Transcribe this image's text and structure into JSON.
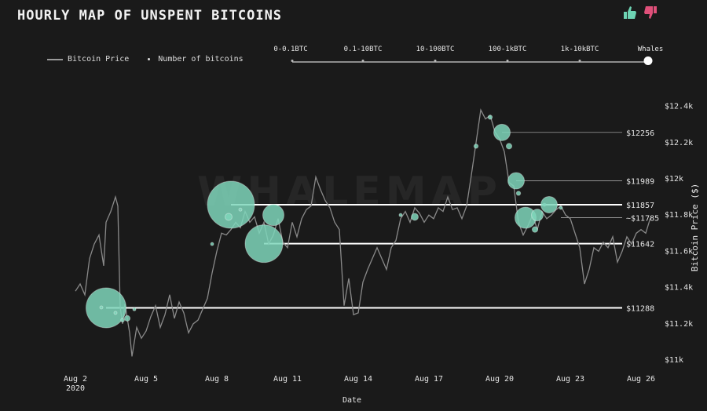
{
  "header": {
    "title": "HOURLY MAP OF UNSPENT BITCOINS",
    "thumbs_up_icon": "thumbs-up-icon",
    "thumbs_down_icon": "thumbs-down-icon",
    "thumbs_up_color": "#6dd3b3",
    "thumbs_down_color": "#e0507a"
  },
  "legend": {
    "price_label": "Bitcoin Price",
    "coins_label": "Number of bitcoins"
  },
  "slider": {
    "options": [
      "0-0.1BTC",
      "0.1-10BTC",
      "10-100BTC",
      "100-1kBTC",
      "1k-10kBTC",
      "Whales"
    ],
    "selected": "Whales"
  },
  "watermark": "WHALEMAP",
  "chart_data": {
    "type": "scatter",
    "title": "HOURLY MAP OF UNSPENT BITCOINS",
    "xlabel": "Date",
    "ylabel": "Bitcoin Price ($)",
    "x_ticks": [
      "Aug 2",
      "Aug 5",
      "Aug 8",
      "Aug 11",
      "Aug 14",
      "Aug 17",
      "Aug 20",
      "Aug 23",
      "Aug 26"
    ],
    "x_tick_sublabel": "2020",
    "y_ticks": [
      "$11k",
      "$11.2k",
      "$11.4k",
      "$11.6k",
      "$11.8k",
      "$12k",
      "$12.2k",
      "$12.4k"
    ],
    "ylim": [
      11000,
      12450
    ],
    "xlim": [
      0,
      24
    ],
    "grid": false,
    "legend_position": "top-left",
    "colors": {
      "price_line": "#8a8a8a",
      "bubble": "#7fd6bb",
      "level_line": "#ffffff"
    },
    "levels": [
      {
        "label": "$12256",
        "value": 12256,
        "style": "thin"
      },
      {
        "label": "$11989",
        "value": 11989,
        "style": "thin"
      },
      {
        "label": "$11857",
        "value": 11857,
        "style": "bold"
      },
      {
        "label": "~$11785",
        "value": 11785,
        "style": "thin"
      },
      {
        "label": "$11642",
        "value": 11642,
        "style": "bold"
      },
      {
        "label": "$11288",
        "value": 11288,
        "style": "bold"
      }
    ],
    "price_series": {
      "name": "Bitcoin Price",
      "points": [
        [
          0.0,
          11380
        ],
        [
          0.2,
          11420
        ],
        [
          0.4,
          11360
        ],
        [
          0.6,
          11560
        ],
        [
          0.8,
          11640
        ],
        [
          1.0,
          11690
        ],
        [
          1.2,
          11520
        ],
        [
          1.3,
          11760
        ],
        [
          1.5,
          11820
        ],
        [
          1.7,
          11900
        ],
        [
          1.8,
          11850
        ],
        [
          1.9,
          11290
        ],
        [
          2.0,
          11200
        ],
        [
          2.1,
          11310
        ],
        [
          2.3,
          11150
        ],
        [
          2.4,
          11020
        ],
        [
          2.6,
          11180
        ],
        [
          2.8,
          11120
        ],
        [
          3.0,
          11160
        ],
        [
          3.2,
          11240
        ],
        [
          3.4,
          11300
        ],
        [
          3.6,
          11180
        ],
        [
          3.8,
          11250
        ],
        [
          4.0,
          11360
        ],
        [
          4.2,
          11230
        ],
        [
          4.4,
          11320
        ],
        [
          4.6,
          11260
        ],
        [
          4.8,
          11150
        ],
        [
          5.0,
          11200
        ],
        [
          5.2,
          11220
        ],
        [
          5.4,
          11280
        ],
        [
          5.6,
          11340
        ],
        [
          5.8,
          11480
        ],
        [
          6.0,
          11600
        ],
        [
          6.2,
          11700
        ],
        [
          6.4,
          11690
        ],
        [
          6.6,
          11720
        ],
        [
          6.8,
          11760
        ],
        [
          7.0,
          11730
        ],
        [
          7.2,
          11820
        ],
        [
          7.4,
          11760
        ],
        [
          7.6,
          11790
        ],
        [
          7.8,
          11700
        ],
        [
          8.0,
          11760
        ],
        [
          8.2,
          11640
        ],
        [
          8.4,
          11690
        ],
        [
          8.6,
          11780
        ],
        [
          8.8,
          11650
        ],
        [
          9.0,
          11620
        ],
        [
          9.2,
          11760
        ],
        [
          9.4,
          11680
        ],
        [
          9.6,
          11780
        ],
        [
          9.8,
          11830
        ],
        [
          10.0,
          11850
        ],
        [
          10.2,
          12010
        ],
        [
          10.4,
          11940
        ],
        [
          10.6,
          11880
        ],
        [
          10.8,
          11840
        ],
        [
          11.0,
          11760
        ],
        [
          11.2,
          11720
        ],
        [
          11.4,
          11300
        ],
        [
          11.6,
          11450
        ],
        [
          11.8,
          11250
        ],
        [
          12.0,
          11260
        ],
        [
          12.2,
          11430
        ],
        [
          12.4,
          11500
        ],
        [
          12.6,
          11560
        ],
        [
          12.8,
          11620
        ],
        [
          13.0,
          11560
        ],
        [
          13.2,
          11500
        ],
        [
          13.4,
          11620
        ],
        [
          13.6,
          11660
        ],
        [
          13.8,
          11780
        ],
        [
          14.0,
          11820
        ],
        [
          14.2,
          11760
        ],
        [
          14.4,
          11840
        ],
        [
          14.6,
          11810
        ],
        [
          14.8,
          11760
        ],
        [
          15.0,
          11800
        ],
        [
          15.2,
          11780
        ],
        [
          15.4,
          11840
        ],
        [
          15.6,
          11820
        ],
        [
          15.8,
          11900
        ],
        [
          16.0,
          11830
        ],
        [
          16.2,
          11840
        ],
        [
          16.4,
          11780
        ],
        [
          16.6,
          11850
        ],
        [
          16.8,
          12020
        ],
        [
          17.0,
          12200
        ],
        [
          17.2,
          12380
        ],
        [
          17.4,
          12330
        ],
        [
          17.6,
          12350
        ],
        [
          17.8,
          12260
        ],
        [
          18.0,
          12220
        ],
        [
          18.2,
          12150
        ],
        [
          18.4,
          11980
        ],
        [
          18.6,
          11960
        ],
        [
          18.8,
          11760
        ],
        [
          19.0,
          11690
        ],
        [
          19.2,
          11740
        ],
        [
          19.4,
          11800
        ],
        [
          19.6,
          11720
        ],
        [
          19.8,
          11820
        ],
        [
          20.0,
          11780
        ],
        [
          20.2,
          11800
        ],
        [
          20.4,
          11830
        ],
        [
          20.6,
          11850
        ],
        [
          20.8,
          11800
        ],
        [
          21.0,
          11780
        ],
        [
          21.2,
          11700
        ],
        [
          21.4,
          11620
        ],
        [
          21.6,
          11420
        ],
        [
          21.8,
          11500
        ],
        [
          22.0,
          11620
        ],
        [
          22.2,
          11600
        ],
        [
          22.4,
          11650
        ],
        [
          22.6,
          11620
        ],
        [
          22.8,
          11680
        ],
        [
          23.0,
          11540
        ],
        [
          23.2,
          11600
        ],
        [
          23.4,
          11680
        ],
        [
          23.6,
          11640
        ],
        [
          23.8,
          11700
        ],
        [
          24.0,
          11720
        ],
        [
          24.2,
          11700
        ],
        [
          24.4,
          11785
        ]
      ]
    },
    "coins_series": {
      "name": "Number of bitcoins",
      "points": [
        {
          "x": 1.3,
          "y": 11288,
          "size": 0.85
        },
        {
          "x": 1.1,
          "y": 11290,
          "size": 0.06
        },
        {
          "x": 1.7,
          "y": 11260,
          "size": 0.06
        },
        {
          "x": 2.2,
          "y": 11230,
          "size": 0.12
        },
        {
          "x": 2.0,
          "y": 11220,
          "size": 0.08
        },
        {
          "x": 2.5,
          "y": 11280,
          "size": 0.06
        },
        {
          "x": 6.6,
          "y": 11857,
          "size": 1.0
        },
        {
          "x": 6.5,
          "y": 11790,
          "size": 0.15
        },
        {
          "x": 7.0,
          "y": 11830,
          "size": 0.06
        },
        {
          "x": 8.4,
          "y": 11800,
          "size": 0.45
        },
        {
          "x": 8.0,
          "y": 11642,
          "size": 0.8
        },
        {
          "x": 5.8,
          "y": 11640,
          "size": 0.06
        },
        {
          "x": 13.8,
          "y": 11800,
          "size": 0.06
        },
        {
          "x": 14.4,
          "y": 11790,
          "size": 0.15
        },
        {
          "x": 17.0,
          "y": 12180,
          "size": 0.09
        },
        {
          "x": 17.6,
          "y": 12340,
          "size": 0.09
        },
        {
          "x": 18.1,
          "y": 12256,
          "size": 0.35
        },
        {
          "x": 18.4,
          "y": 12180,
          "size": 0.12
        },
        {
          "x": 18.7,
          "y": 11989,
          "size": 0.35
        },
        {
          "x": 18.8,
          "y": 11920,
          "size": 0.09
        },
        {
          "x": 19.1,
          "y": 11785,
          "size": 0.45
        },
        {
          "x": 19.6,
          "y": 11800,
          "size": 0.25
        },
        {
          "x": 19.9,
          "y": 11857,
          "size": 0.06
        },
        {
          "x": 20.1,
          "y": 11857,
          "size": 0.35
        },
        {
          "x": 19.5,
          "y": 11720,
          "size": 0.12
        },
        {
          "x": 20.6,
          "y": 11840,
          "size": 0.06
        }
      ]
    }
  }
}
